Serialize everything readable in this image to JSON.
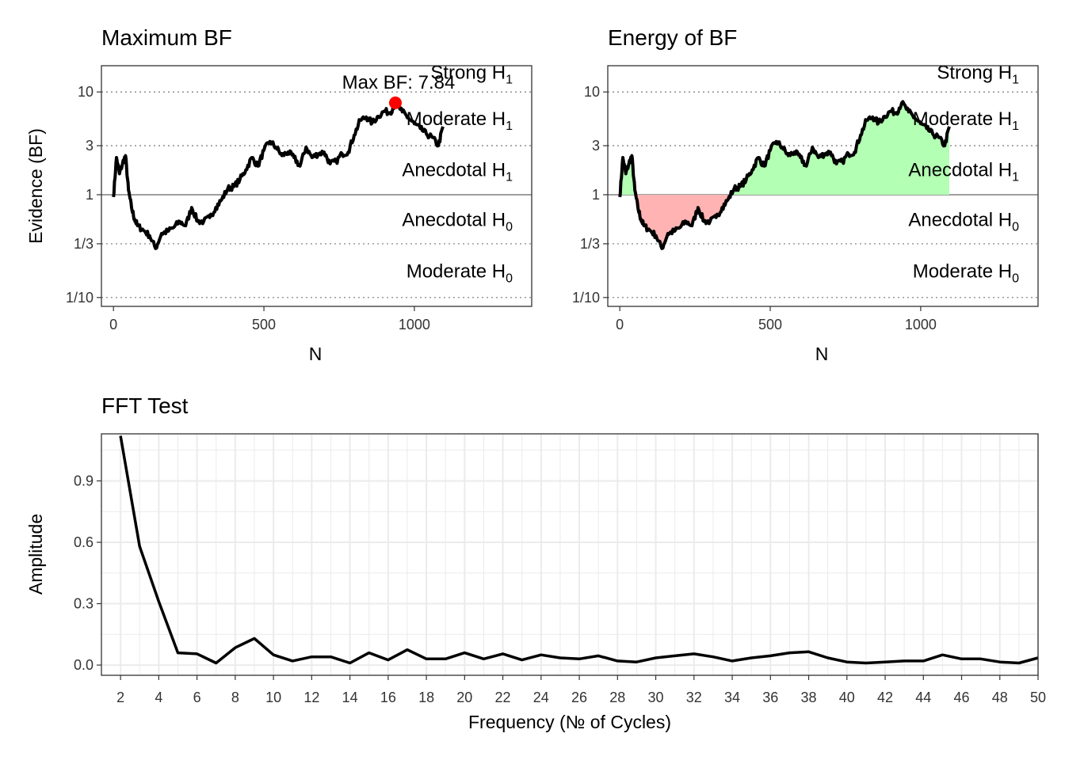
{
  "colors": {
    "line": "#000000",
    "max_point": "#ff0000",
    "positive_fill": "#b3ffb3",
    "negative_fill": "#ffb3b3",
    "grid": "#ebebeb",
    "evidence_line": "#7f7f7f"
  },
  "panels": {
    "max_bf": {
      "title": "Maximum BF",
      "xlabel": "N",
      "ylabel": "Evidence (BF)",
      "max_label": "Max BF: 7.84",
      "categories": [
        {
          "main": "Strong H",
          "sub": "1",
          "y": 15.5
        },
        {
          "main": "Moderate H",
          "sub": "1",
          "y": 5.5
        },
        {
          "main": "Anecdotal H",
          "sub": "1",
          "y": 1.75
        },
        {
          "main": "Anecdotal H",
          "sub": "0",
          "y": 0.57
        },
        {
          "main": "Moderate H",
          "sub": "0",
          "y": 0.18
        }
      ]
    },
    "energy_bf": {
      "title": "Energy of BF",
      "xlabel": "N",
      "ylabel": "",
      "categories": [
        {
          "main": "Strong H",
          "sub": "1",
          "y": 15.5
        },
        {
          "main": "Moderate H",
          "sub": "1",
          "y": 5.5
        },
        {
          "main": "Anecdotal H",
          "sub": "1",
          "y": 1.75
        },
        {
          "main": "Anecdotal H",
          "sub": "0",
          "y": 0.57
        },
        {
          "main": "Moderate H",
          "sub": "0",
          "y": 0.18
        }
      ]
    },
    "fft": {
      "title": "FFT Test",
      "xlabel": "Frequency (№ of Cycles)",
      "ylabel": "Amplitude"
    }
  },
  "chart_data": [
    {
      "type": "line",
      "title": "Maximum BF",
      "xlabel": "N",
      "ylabel": "Evidence (BF)",
      "y_scale": "log",
      "xlim": [
        -40,
        1390
      ],
      "ylim": [
        0.082,
        18
      ],
      "x_ticks": [
        0,
        500,
        1000
      ],
      "y_ticks": [
        {
          "value": 10,
          "label": "10"
        },
        {
          "value": 3,
          "label": "3"
        },
        {
          "value": 1,
          "label": "1"
        },
        {
          "value": 0.3333,
          "label": "1/3"
        },
        {
          "value": 0.1,
          "label": "1/10"
        }
      ],
      "x": [
        0,
        10,
        20,
        30,
        40,
        50,
        60,
        70,
        80,
        100,
        120,
        140,
        160,
        180,
        200,
        220,
        240,
        260,
        280,
        300,
        320,
        340,
        360,
        380,
        400,
        420,
        440,
        460,
        480,
        500,
        520,
        540,
        560,
        580,
        600,
        620,
        640,
        660,
        680,
        700,
        720,
        740,
        760,
        780,
        800,
        820,
        840,
        860,
        880,
        900,
        920,
        937,
        960,
        980,
        1000,
        1020,
        1040,
        1060,
        1080,
        1095
      ],
      "values": [
        0.95,
        2.3,
        1.6,
        2.0,
        2.4,
        1.1,
        0.75,
        0.58,
        0.5,
        0.45,
        0.4,
        0.3,
        0.42,
        0.44,
        0.48,
        0.55,
        0.5,
        0.75,
        0.55,
        0.55,
        0.6,
        0.75,
        0.9,
        1.15,
        1.2,
        1.4,
        1.75,
        2.3,
        1.9,
        2.7,
        3.3,
        2.9,
        2.4,
        2.6,
        2.3,
        1.9,
        2.9,
        2.3,
        2.5,
        2.6,
        2.0,
        2.1,
        2.5,
        2.6,
        3.8,
        5.3,
        5.7,
        5.0,
        5.8,
        6.5,
        6.3,
        7.84,
        6.4,
        5.6,
        4.9,
        4.4,
        3.9,
        3.6,
        3.0,
        4.6
      ],
      "max_point": {
        "x": 937,
        "y": 7.84
      }
    },
    {
      "type": "area",
      "title": "Energy of BF",
      "xlabel": "N",
      "y_scale": "log",
      "baseline": 1,
      "xlim": [
        -40,
        1390
      ],
      "ylim": [
        0.082,
        18
      ],
      "x_ticks": [
        0,
        500,
        1000
      ],
      "y_ticks": [
        {
          "value": 10,
          "label": "10"
        },
        {
          "value": 3,
          "label": "3"
        },
        {
          "value": 1,
          "label": "1"
        },
        {
          "value": 0.3333,
          "label": "1/3"
        },
        {
          "value": 0.1,
          "label": "1/10"
        }
      ],
      "series_ref": "same as Maximum BF"
    },
    {
      "type": "line",
      "title": "FFT Test",
      "xlabel": "Frequency (№ of Cycles)",
      "ylabel": "Amplitude",
      "xlim": [
        1,
        50
      ],
      "ylim": [
        -0.05,
        1.13
      ],
      "x_ticks": [
        2,
        4,
        6,
        8,
        10,
        12,
        14,
        16,
        18,
        20,
        22,
        24,
        26,
        28,
        30,
        32,
        34,
        36,
        38,
        40,
        42,
        44,
        46,
        48,
        50
      ],
      "y_ticks": [
        0.0,
        0.3,
        0.6,
        0.9
      ],
      "y_tick_labels": [
        "0.0",
        "0.3",
        "0.6",
        "0.9"
      ],
      "x": [
        2,
        3,
        4,
        5,
        6,
        7,
        8,
        9,
        10,
        11,
        12,
        13,
        14,
        15,
        16,
        17,
        18,
        19,
        20,
        21,
        22,
        23,
        24,
        25,
        26,
        27,
        28,
        29,
        30,
        31,
        32,
        33,
        34,
        35,
        36,
        37,
        38,
        39,
        40,
        41,
        42,
        43,
        44,
        45,
        46,
        47,
        48,
        49,
        50
      ],
      "values": [
        1.12,
        0.58,
        0.31,
        0.06,
        0.055,
        0.01,
        0.085,
        0.13,
        0.05,
        0.02,
        0.04,
        0.04,
        0.01,
        0.06,
        0.025,
        0.075,
        0.03,
        0.03,
        0.06,
        0.03,
        0.055,
        0.025,
        0.05,
        0.035,
        0.03,
        0.045,
        0.02,
        0.015,
        0.035,
        0.045,
        0.055,
        0.04,
        0.02,
        0.035,
        0.045,
        0.06,
        0.065,
        0.035,
        0.015,
        0.01,
        0.015,
        0.02,
        0.02,
        0.05,
        0.03,
        0.03,
        0.015,
        0.01,
        0.035
      ]
    }
  ]
}
